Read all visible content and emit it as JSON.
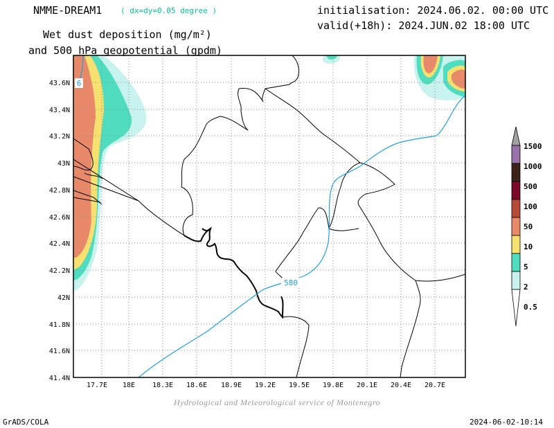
{
  "header": {
    "model": "NMME-DREAM1",
    "resolution": "( dx=dy=0.05 degree )",
    "initialisation": "initialisation: 2024.06.02. 00:00 UTC",
    "valid": "valid(+18h): 2024.JUN.02 18:00 UTC",
    "title_line1": "Wet dust deposition (mg/m²)",
    "title_line2": "and 500 hPa geopotential (gpdm)"
  },
  "map": {
    "x_ticks": [
      "17.7E",
      "18E",
      "18.3E",
      "18.6E",
      "18.9E",
      "19.2E",
      "19.5E",
      "19.8E",
      "20.1E",
      "20.4E",
      "20.7E"
    ],
    "y_ticks": [
      "43.6N",
      "43.4N",
      "43.2N",
      "43N",
      "42.8N",
      "42.6N",
      "42.4N",
      "42.2N",
      "42N",
      "41.8N",
      "41.6N",
      "41.4N"
    ],
    "contour_labels": [
      "580",
      "6"
    ],
    "grid": true
  },
  "legend": {
    "levels": [
      "1500",
      "1000",
      "500",
      "100",
      "50",
      "10",
      "5",
      "2",
      "0.5"
    ],
    "colors": [
      "#a0a0a0",
      "#9a70a8",
      "#3c2418",
      "#7a0a28",
      "#b84a3a",
      "#e88a6a",
      "#f5e070",
      "#50dcbe",
      "#c8f2ee"
    ]
  },
  "footer": {
    "credit": "Hydrological and Meteorological service of Montenegro",
    "software": "GrADS/COLA",
    "timestamp": "2024-06-02-10:14"
  }
}
